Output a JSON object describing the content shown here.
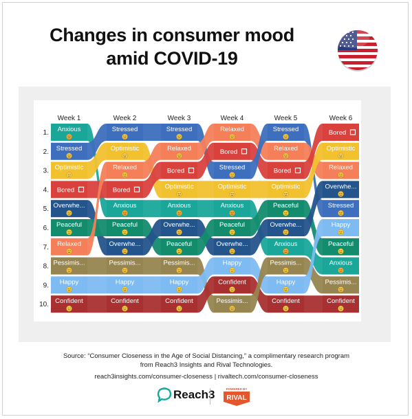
{
  "header": {
    "title_line1": "Changes in consumer mood",
    "title_line2": "amid COVID-19",
    "flag_icon": "us-flag-icon"
  },
  "colors": {
    "Anxious": "#1aa79a",
    "Stressed": "#3d6fbe",
    "Optimistic": "#f2c12e",
    "Bored": "#d9413d",
    "Overwhelmed": "#24548c",
    "Peaceful": "#138c6e",
    "Relaxed": "#f47f58",
    "Pessimistic": "#968550",
    "Happy": "#7dbbf2",
    "Confident": "#a93030"
  },
  "emoji_colors": {
    "Anxious": "#f4a93b",
    "Stressed": "#f4c542",
    "Optimistic": "#f7d35a",
    "Bored": "#ffffff",
    "Overwhelmed": "#f4c542",
    "Peaceful": "#f7d040",
    "Relaxed": "#f4c542",
    "Pessimistic": "#f4c542",
    "Happy": "#f7d040",
    "Confident": "#f7d040"
  },
  "chart_data": {
    "type": "bump",
    "title": "Changes in consumer mood amid COVID-19",
    "weeks": [
      "Week 1",
      "Week 2",
      "Week 3",
      "Week 4",
      "Week 5",
      "Week 6"
    ],
    "ranks": [
      "1.",
      "2.",
      "3.",
      "4.",
      "5.",
      "6.",
      "7.",
      "8.",
      "9.",
      "10."
    ],
    "columns": [
      [
        {
          "mood": "Anxious",
          "label": "Anxious"
        },
        {
          "mood": "Stressed",
          "label": "Stressed"
        },
        {
          "mood": "Optimistic",
          "label": "Optimistic"
        },
        {
          "mood": "Bored",
          "label": "Bored"
        },
        {
          "mood": "Overwhelmed",
          "label": "Overwhe..."
        },
        {
          "mood": "Peaceful",
          "label": "Peaceful"
        },
        {
          "mood": "Relaxed",
          "label": "Relaxed"
        },
        {
          "mood": "Pessimistic",
          "label": "Pessimis..."
        },
        {
          "mood": "Happy",
          "label": "Happy"
        },
        {
          "mood": "Confident",
          "label": "Confident"
        }
      ],
      [
        {
          "mood": "Stressed",
          "label": "Stressed"
        },
        {
          "mood": "Optimistic",
          "label": "Optimistic"
        },
        {
          "mood": "Relaxed",
          "label": "Relaxed"
        },
        {
          "mood": "Bored",
          "label": "Bored"
        },
        {
          "mood": "Anxious",
          "label": "Anxious"
        },
        {
          "mood": "Peaceful",
          "label": "Peaceful"
        },
        {
          "mood": "Overwhelmed",
          "label": "Overwhe..."
        },
        {
          "mood": "Pessimistic",
          "label": "Pessimis..."
        },
        {
          "mood": "Happy",
          "label": "Happy"
        },
        {
          "mood": "Confident",
          "label": "Confident"
        }
      ],
      [
        {
          "mood": "Stressed",
          "label": "Stressed"
        },
        {
          "mood": "Relaxed",
          "label": "Relaxed"
        },
        {
          "mood": "Bored",
          "label": "Bored"
        },
        {
          "mood": "Optimistic",
          "label": "Optimistic"
        },
        {
          "mood": "Anxious",
          "label": "Anxious"
        },
        {
          "mood": "Overwhelmed",
          "label": "Overwhe..."
        },
        {
          "mood": "Peaceful",
          "label": "Peaceful"
        },
        {
          "mood": "Pessimistic",
          "label": "Pessimis..."
        },
        {
          "mood": "Happy",
          "label": "Happy"
        },
        {
          "mood": "Confident",
          "label": "Confident"
        }
      ],
      [
        {
          "mood": "Relaxed",
          "label": "Relaxed"
        },
        {
          "mood": "Bored",
          "label": "Bored"
        },
        {
          "mood": "Stressed",
          "label": "Stressed"
        },
        {
          "mood": "Optimistic",
          "label": "Optimistic"
        },
        {
          "mood": "Anxious",
          "label": "Anxious"
        },
        {
          "mood": "Peaceful",
          "label": "Peaceful"
        },
        {
          "mood": "Overwhelmed",
          "label": "Overwhe..."
        },
        {
          "mood": "Happy",
          "label": "Happy"
        },
        {
          "mood": "Confident",
          "label": "Confident"
        },
        {
          "mood": "Pessimistic",
          "label": "Pessimis..."
        }
      ],
      [
        {
          "mood": "Stressed",
          "label": "Stressed"
        },
        {
          "mood": "Relaxed",
          "label": "Relaxed"
        },
        {
          "mood": "Bored",
          "label": "Bored"
        },
        {
          "mood": "Optimistic",
          "label": "Optimistic"
        },
        {
          "mood": "Peaceful",
          "label": "Peaceful"
        },
        {
          "mood": "Overwhelmed",
          "label": "Overwhe..."
        },
        {
          "mood": "Anxious",
          "label": "Anxious"
        },
        {
          "mood": "Pessimistic",
          "label": "Pessimis..."
        },
        {
          "mood": "Happy",
          "label": "Happy"
        },
        {
          "mood": "Confident",
          "label": "Confident"
        }
      ],
      [
        {
          "mood": "Bored",
          "label": "Bored"
        },
        {
          "mood": "Optimistic",
          "label": "Optimistic"
        },
        {
          "mood": "Relaxed",
          "label": "Relaxed"
        },
        {
          "mood": "Overwhelmed",
          "label": "Overwhe..."
        },
        {
          "mood": "Stressed",
          "label": "Stressed"
        },
        {
          "mood": "Happy",
          "label": "Happy"
        },
        {
          "mood": "Peaceful",
          "label": "Peaceful"
        },
        {
          "mood": "Anxious",
          "label": "Anxious"
        },
        {
          "mood": "Pessimistic",
          "label": "Pessimis..."
        },
        {
          "mood": "Confident",
          "label": "Confident"
        }
      ]
    ]
  },
  "footer": {
    "source_line1": "Source: “Consumer Closeness in the Age of Social Distancing,” a complimentary research program",
    "source_line2": "from Reach3 Insights and Rival Technologies.",
    "links": "reach3insights.com/consumer-closeness | rivaltech.com/consumer-closeness",
    "reach3_logo_text": "Reach3",
    "rival_badge_top": "POWERED BY",
    "rival_badge_text": "RIVAL"
  }
}
